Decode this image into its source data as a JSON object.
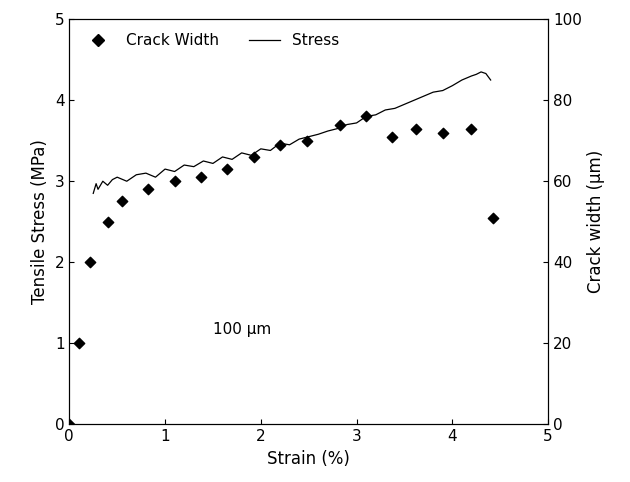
{
  "chart_data": {
    "type": "line",
    "x_label": "Strain (%)",
    "y_label": "Tensile Stress (MPa)",
    "y2_label": "Crack width (μm)",
    "annotations": [
      "100 μm"
    ],
    "xlim": [
      0,
      5
    ],
    "xticks": [
      0,
      1,
      2,
      3,
      4,
      5
    ],
    "ylim": [
      0,
      5
    ],
    "yticks": [
      0,
      1,
      2,
      3,
      4,
      5
    ],
    "y2lim": [
      0,
      100
    ],
    "y2ticks": [
      0,
      20,
      40,
      60,
      80,
      100
    ],
    "legend": "upper left",
    "grid": false,
    "series": [
      {
        "name": "Crack Width",
        "type": "scatter",
        "marker": "D",
        "color": "#000000",
        "axis": "y2",
        "x": [
          0.0,
          0.1,
          0.22,
          0.4,
          0.55,
          0.82,
          1.1,
          1.38,
          1.65,
          1.93,
          2.2,
          2.48,
          2.83,
          3.1,
          3.37,
          3.62,
          3.9,
          4.2,
          4.42
        ],
        "values": [
          0,
          20,
          40,
          50,
          55,
          58,
          60,
          61,
          63,
          66,
          69,
          70,
          74,
          76,
          71,
          73,
          72,
          73,
          51
        ]
      },
      {
        "name": "Stress",
        "type": "line",
        "line_style": "solid",
        "color": "#000000",
        "x": [
          0.25,
          0.28,
          0.3,
          0.35,
          0.4,
          0.45,
          0.5,
          0.6,
          0.7,
          0.8,
          0.9,
          1.0,
          1.1,
          1.2,
          1.3,
          1.4,
          1.5,
          1.6,
          1.7,
          1.8,
          1.9,
          2.0,
          2.1,
          2.2,
          2.3,
          2.4,
          2.5,
          2.6,
          2.7,
          2.8,
          2.9,
          3.0,
          3.1,
          3.2,
          3.3,
          3.4,
          3.5,
          3.6,
          3.7,
          3.8,
          3.9,
          4.0,
          4.1,
          4.2,
          4.25,
          4.3,
          4.35,
          4.4
        ],
        "values": [
          2.85,
          2.97,
          2.9,
          3.0,
          2.95,
          3.02,
          3.05,
          3.0,
          3.08,
          3.1,
          3.05,
          3.15,
          3.12,
          3.2,
          3.18,
          3.25,
          3.22,
          3.3,
          3.27,
          3.35,
          3.32,
          3.4,
          3.38,
          3.47,
          3.45,
          3.52,
          3.55,
          3.58,
          3.62,
          3.65,
          3.7,
          3.72,
          3.8,
          3.82,
          3.88,
          3.9,
          3.95,
          4.0,
          4.05,
          4.1,
          4.12,
          4.18,
          4.25,
          4.3,
          4.32,
          4.35,
          4.33,
          4.25
        ]
      }
    ]
  }
}
